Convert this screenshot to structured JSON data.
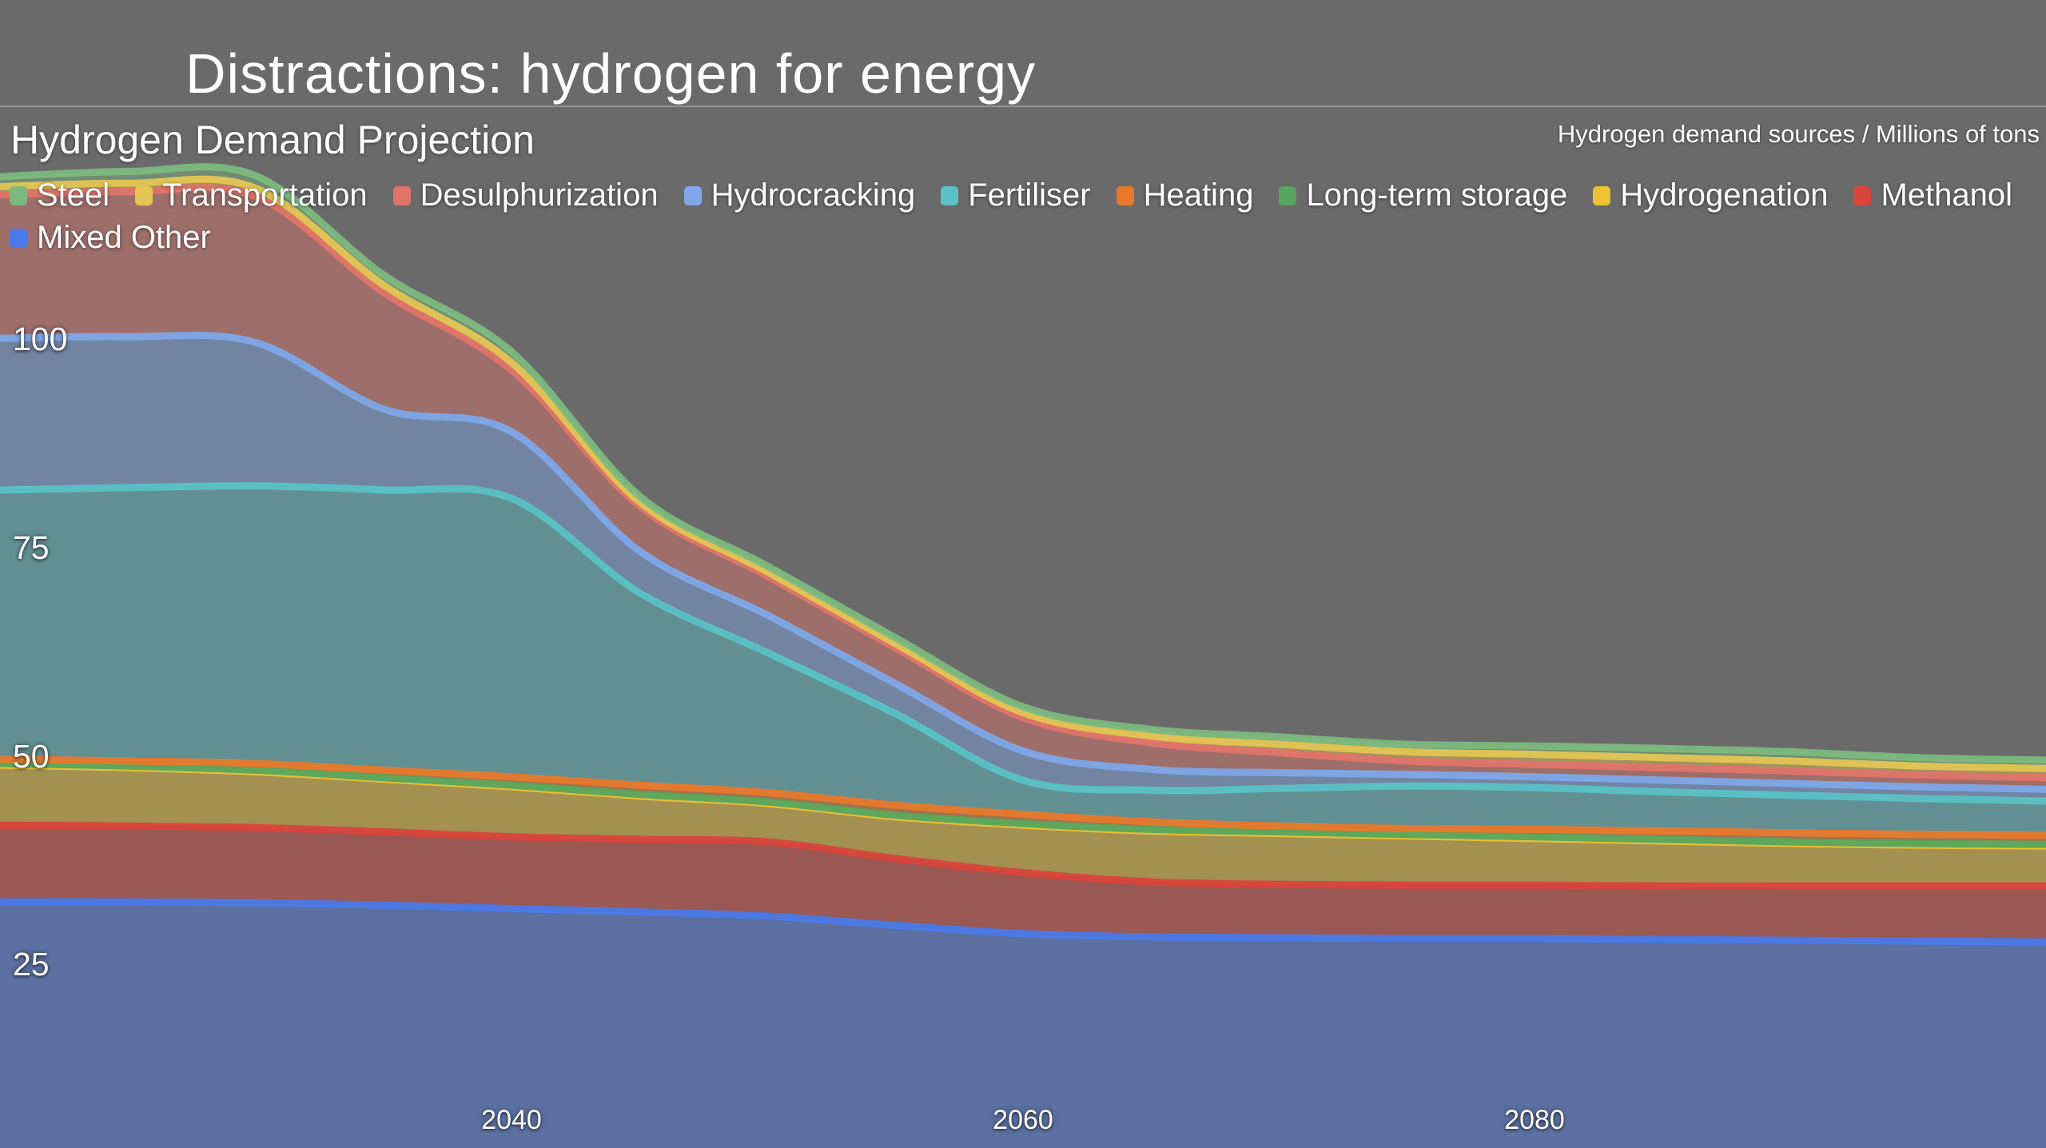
{
  "header": {
    "title": "Distractions: hydrogen for energy"
  },
  "chart": {
    "title": "Hydrogen Demand Projection",
    "y_axis_title": "Hydrogen demand sources / Millions of tons"
  },
  "chart_data": {
    "type": "area",
    "stacked": true,
    "title": "Hydrogen Demand Projection",
    "ylabel": "Hydrogen demand sources / Millions of tons",
    "xlim": [
      2020,
      2100
    ],
    "ylim": [
      0,
      121
    ],
    "grid": false,
    "legend_position": "top",
    "xticks": [
      2040,
      2060,
      2080
    ],
    "yticks": [
      25,
      50,
      75,
      100
    ],
    "x": [
      2020,
      2025,
      2030,
      2035,
      2040,
      2045,
      2050,
      2055,
      2060,
      2065,
      2070,
      2075,
      2080,
      2085,
      2090,
      2095,
      2100
    ],
    "legend_order": [
      "Steel",
      "Transportation",
      "Desulphurization",
      "Hydrocracking",
      "Fertiliser",
      "Heating",
      "Long-term storage",
      "Hydrogenation",
      "Methanol",
      "Mixed Other"
    ],
    "series": [
      {
        "name": "Mixed Other",
        "color": "#4a79e8",
        "values": [
          32.4,
          32.4,
          32.3,
          32.0,
          31.6,
          31.2,
          30.7,
          29.6,
          28.6,
          28.2,
          28.1,
          28.0,
          28.0,
          27.9,
          27.8,
          27.7,
          27.6
        ]
      },
      {
        "name": "Methanol",
        "color": "#d9453a",
        "values": [
          9.2,
          9.1,
          9.0,
          8.8,
          8.6,
          8.7,
          8.9,
          8.0,
          7.3,
          6.6,
          6.4,
          6.4,
          6.4,
          6.4,
          6.5,
          6.6,
          6.7
        ]
      },
      {
        "name": "Hydrogenation",
        "color": "#eec232",
        "values": [
          7.2,
          7.0,
          6.7,
          6.3,
          6.0,
          5.2,
          4.6,
          5.0,
          5.7,
          6.1,
          6.1,
          5.9,
          5.6,
          5.4,
          5.1,
          4.9,
          4.8
        ]
      },
      {
        "name": "Long-term storage",
        "color": "#57a55e",
        "values": [
          0.2,
          0.2,
          0.2,
          0.2,
          0.2,
          0.2,
          0.2,
          0.2,
          0.2,
          0.2,
          0.2,
          0.2,
          0.2,
          0.2,
          0.2,
          0.2,
          0.2
        ]
      },
      {
        "name": "Heating",
        "color": "#e8792b",
        "values": [
          0.5,
          0.6,
          0.8,
          0.9,
          1.0,
          1.1,
          1.1,
          1.2,
          1.1,
          0.9,
          0.7,
          0.7,
          0.9,
          1.0,
          1.1,
          1.1,
          1.1
        ]
      },
      {
        "name": "Fertiliser",
        "color": "#58c2c5",
        "values": [
          32.3,
          32.8,
          33.3,
          33.6,
          33.4,
          23.1,
          16.8,
          11.0,
          4.1,
          3.8,
          4.5,
          5.1,
          5.0,
          4.7,
          4.5,
          4.3,
          4.1
        ]
      },
      {
        "name": "Hydrocracking",
        "color": "#7ea6e8",
        "values": [
          18.2,
          18.1,
          17.2,
          9.7,
          8.0,
          5.0,
          4.5,
          3.6,
          3.5,
          2.5,
          1.9,
          1.4,
          1.3,
          1.4,
          1.4,
          1.4,
          1.4
        ]
      },
      {
        "name": "Desulphurization",
        "color": "#e0746a",
        "values": [
          17.2,
          17.4,
          17.5,
          14.0,
          7.4,
          5.4,
          4.7,
          4.3,
          4.0,
          3.2,
          2.4,
          1.6,
          1.5,
          1.5,
          1.5,
          1.4,
          1.4
        ]
      },
      {
        "name": "Transportation",
        "color": "#e3c553",
        "values": [
          1.0,
          1.0,
          1.0,
          0.9,
          0.9,
          0.5,
          0.5,
          0.5,
          0.6,
          0.8,
          1.0,
          1.1,
          1.2,
          1.2,
          1.2,
          1.1,
          1.1
        ]
      },
      {
        "name": "Steel",
        "color": "#7cb97e",
        "values": [
          1.2,
          1.4,
          1.5,
          1.2,
          1.3,
          0.7,
          0.7,
          0.7,
          0.7,
          0.8,
          0.9,
          0.9,
          1.0,
          1.1,
          1.1,
          1.0,
          1.0
        ]
      }
    ]
  }
}
